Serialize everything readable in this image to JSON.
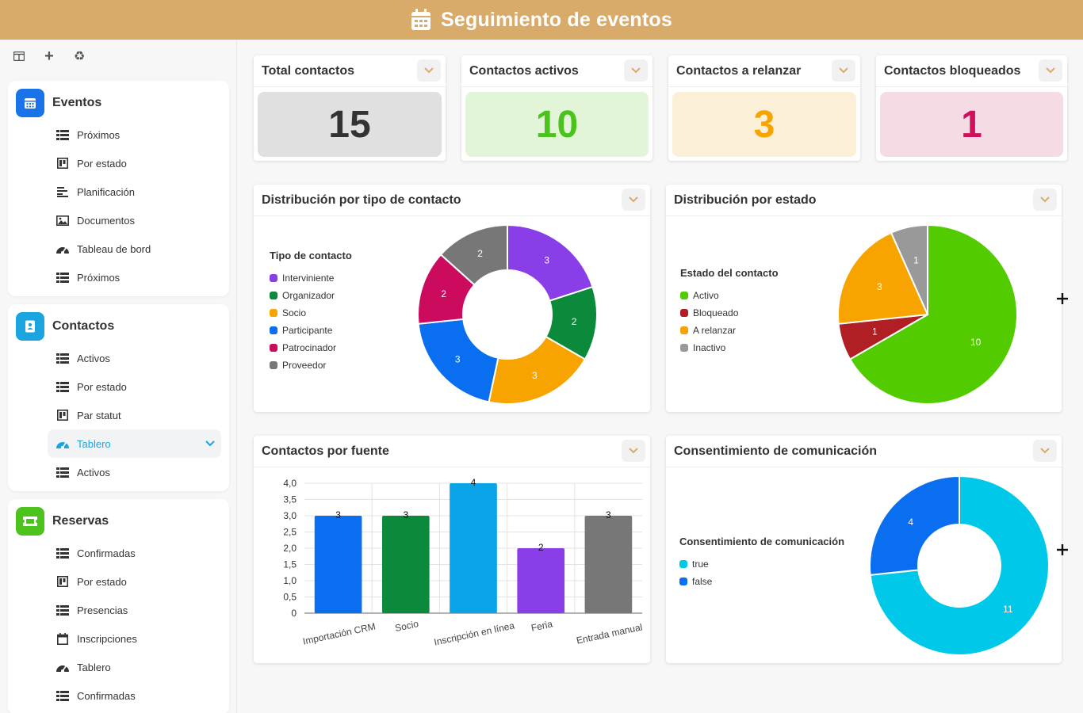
{
  "header": {
    "title": "Seguimiento de eventos",
    "icon": "calendar-icon"
  },
  "sidebar": {
    "tools": [
      {
        "icon": "layout-icon"
      },
      {
        "icon": "plus-icon",
        "glyph": "+"
      },
      {
        "icon": "recycle-icon",
        "glyph": "♻"
      }
    ],
    "groups": [
      {
        "title": "Eventos",
        "color": "#1a73e8",
        "icon": "calendar-icon",
        "items": [
          {
            "label": "Próximos",
            "icon": "list-icon"
          },
          {
            "label": "Por estado",
            "icon": "kanban-icon"
          },
          {
            "label": "Planificación",
            "icon": "gantt-icon"
          },
          {
            "label": "Documentos",
            "icon": "image-icon"
          },
          {
            "label": "Tableau de bord",
            "icon": "dashboard-icon"
          },
          {
            "label": "Próximos",
            "icon": "list-icon"
          }
        ]
      },
      {
        "title": "Contactos",
        "color": "#1aa5e0",
        "icon": "contact-book-icon",
        "items": [
          {
            "label": "Activos",
            "icon": "list-icon"
          },
          {
            "label": "Por estado",
            "icon": "list-icon"
          },
          {
            "label": "Par statut",
            "icon": "kanban-icon"
          },
          {
            "label": "Tablero",
            "icon": "dashboard-icon",
            "active": true
          },
          {
            "label": "Activos",
            "icon": "list-icon"
          }
        ]
      },
      {
        "title": "Reservas",
        "color": "#4cc21c",
        "icon": "ticket-icon",
        "items": [
          {
            "label": "Confirmadas",
            "icon": "list-icon"
          },
          {
            "label": "Por estado",
            "icon": "kanban-icon"
          },
          {
            "label": "Presencias",
            "icon": "list-icon"
          },
          {
            "label": "Inscripciones",
            "icon": "calendar-outline-icon"
          },
          {
            "label": "Tablero",
            "icon": "dashboard-icon"
          },
          {
            "label": "Confirmadas",
            "icon": "list-icon"
          }
        ]
      }
    ]
  },
  "kpis": [
    {
      "title": "Total contactos",
      "value": "15",
      "bg": "#e0e0e0",
      "color": "#333333"
    },
    {
      "title": "Contactos activos",
      "value": "10",
      "bg": "#e2f5d8",
      "color": "#4cc21c"
    },
    {
      "title": "Contactos a relanzar",
      "value": "3",
      "bg": "#fcefd8",
      "color": "#f7a400"
    },
    {
      "title": "Contactos bloqueados",
      "value": "1",
      "bg": "#f4dbe4",
      "color": "#d0105c"
    }
  ],
  "cards": {
    "tipo": {
      "title": "Distribución por tipo de contacto"
    },
    "estado": {
      "title": "Distribución por estado"
    },
    "fuente": {
      "title": "Contactos por fuente"
    },
    "consent": {
      "title": "Consentimiento de comunicación"
    }
  },
  "chart_data": [
    {
      "type": "pie",
      "variant": "donut",
      "legend_title": "Tipo de contacto",
      "legend_position": "left",
      "slices": [
        {
          "label": "Interviniente",
          "value": 3,
          "color": "#8a3ee8"
        },
        {
          "label": "Organizador",
          "value": 2,
          "color": "#0a8a3a"
        },
        {
          "label": "Socio",
          "value": 3,
          "color": "#f7a400"
        },
        {
          "label": "Participante",
          "value": 3,
          "color": "#0a6ef0"
        },
        {
          "label": "Patrocinador",
          "value": 2,
          "color": "#cc0a5e"
        },
        {
          "label": "Proveedor",
          "value": 2,
          "color": "#777777"
        }
      ]
    },
    {
      "type": "pie",
      "legend_title": "Estado del contacto",
      "legend_position": "left",
      "slices": [
        {
          "label": "Activo",
          "value": 10,
          "color": "#52cc00"
        },
        {
          "label": "Bloqueado",
          "value": 1,
          "color": "#b01f24"
        },
        {
          "label": "A relanzar",
          "value": 3,
          "color": "#f7a400"
        },
        {
          "label": "Inactivo",
          "value": 1,
          "color": "#999999"
        }
      ]
    },
    {
      "type": "bar",
      "categories": [
        "Importación CRM",
        "Socio",
        "Inscripción en línea",
        "Feria",
        "Entrada manual"
      ],
      "values": [
        3,
        3,
        4,
        2,
        3
      ],
      "colors": [
        "#0a6ef0",
        "#0a8a3a",
        "#09a3e8",
        "#8a3ee8",
        "#777777"
      ],
      "yticks": [
        "0",
        "0,5",
        "1,0",
        "1,5",
        "2,0",
        "2,5",
        "3,0",
        "3,5",
        "4,0"
      ],
      "ylim": [
        0,
        4
      ],
      "grid": true
    },
    {
      "type": "pie",
      "variant": "donut",
      "legend_title": "Consentimiento de comunicación",
      "legend_position": "left",
      "slices": [
        {
          "label": "true",
          "value": 11,
          "color": "#00c8e8"
        },
        {
          "label": "false",
          "value": 4,
          "color": "#0a6ef0"
        }
      ]
    }
  ]
}
